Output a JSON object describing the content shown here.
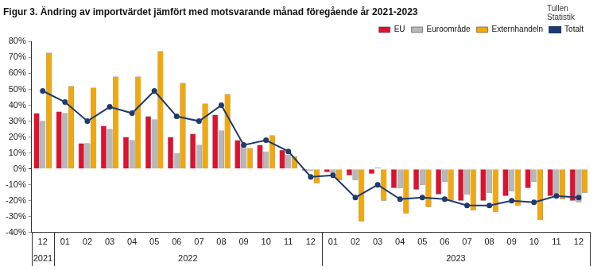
{
  "chart_data": {
    "type": "bar",
    "title": "Figur 3. Ändring av importvärdet jämfört med motsvarande månad föregående år 2021-2023",
    "annotations": [
      "Tullen",
      "Statistik"
    ],
    "categories": [
      "12",
      "01",
      "02",
      "03",
      "04",
      "05",
      "06",
      "07",
      "08",
      "09",
      "10",
      "11",
      "12",
      "01",
      "02",
      "03",
      "04",
      "05",
      "06",
      "07",
      "08",
      "09",
      "10",
      "11",
      "12"
    ],
    "x_groups": [
      {
        "label": "2021",
        "count": 1
      },
      {
        "label": "2022",
        "count": 12
      },
      {
        "label": "2023",
        "count": 12
      }
    ],
    "series": [
      {
        "name": "EU",
        "type": "bar",
        "color": "#e0102f",
        "values": [
          35,
          36,
          16,
          27,
          20,
          33,
          20,
          22,
          34,
          18,
          15,
          12,
          -1,
          -2,
          -4,
          -3,
          -12,
          -13,
          -16,
          -20,
          -20,
          -17,
          -12,
          -17,
          -20
        ]
      },
      {
        "name": "Euroområde",
        "type": "bar",
        "color": "#b8b8b8",
        "values": [
          30,
          35,
          16,
          25,
          18,
          31,
          10,
          15,
          24,
          14,
          11,
          9,
          -1,
          -3,
          -7,
          1,
          -12,
          -10,
          -8,
          -16,
          -15,
          -14,
          -8,
          -16,
          -21
        ]
      },
      {
        "name": "Externhandeln",
        "type": "bar",
        "color": "#f5a800",
        "values": [
          73,
          52,
          51,
          58,
          58,
          74,
          54,
          41,
          47,
          13,
          21,
          8,
          -9,
          -7,
          -33,
          -20,
          -28,
          -24,
          -20,
          -26,
          -27,
          -23,
          -32,
          -19,
          -15
        ]
      },
      {
        "name": "Totalt",
        "type": "line",
        "color": "#1f3a6e",
        "marker": "circle",
        "values": [
          49,
          42,
          30,
          39,
          35,
          49,
          33,
          30,
          40,
          15,
          18,
          11,
          -5,
          -4,
          -18,
          -10,
          -19,
          -18,
          -19,
          -23,
          -23,
          -20,
          -21,
          -17,
          -18
        ]
      }
    ],
    "ylim": [
      -40,
      80
    ],
    "yticks": [
      {
        "value": -40,
        "label": "-40%"
      },
      {
        "value": -30,
        "label": "-30%"
      },
      {
        "value": -20,
        "label": "-20%"
      },
      {
        "value": -10,
        "label": "-10%"
      },
      {
        "value": 0,
        "label": "0%"
      },
      {
        "value": 10,
        "label": "10%"
      },
      {
        "value": 20,
        "label": "20%"
      },
      {
        "value": 30,
        "label": "30%"
      },
      {
        "value": 40,
        "label": "40%"
      },
      {
        "value": 50,
        "label": "50%"
      },
      {
        "value": 60,
        "label": "60%"
      },
      {
        "value": 70,
        "label": "70%"
      },
      {
        "value": 80,
        "label": "80%"
      }
    ],
    "grid": false,
    "legend": "top-right"
  }
}
